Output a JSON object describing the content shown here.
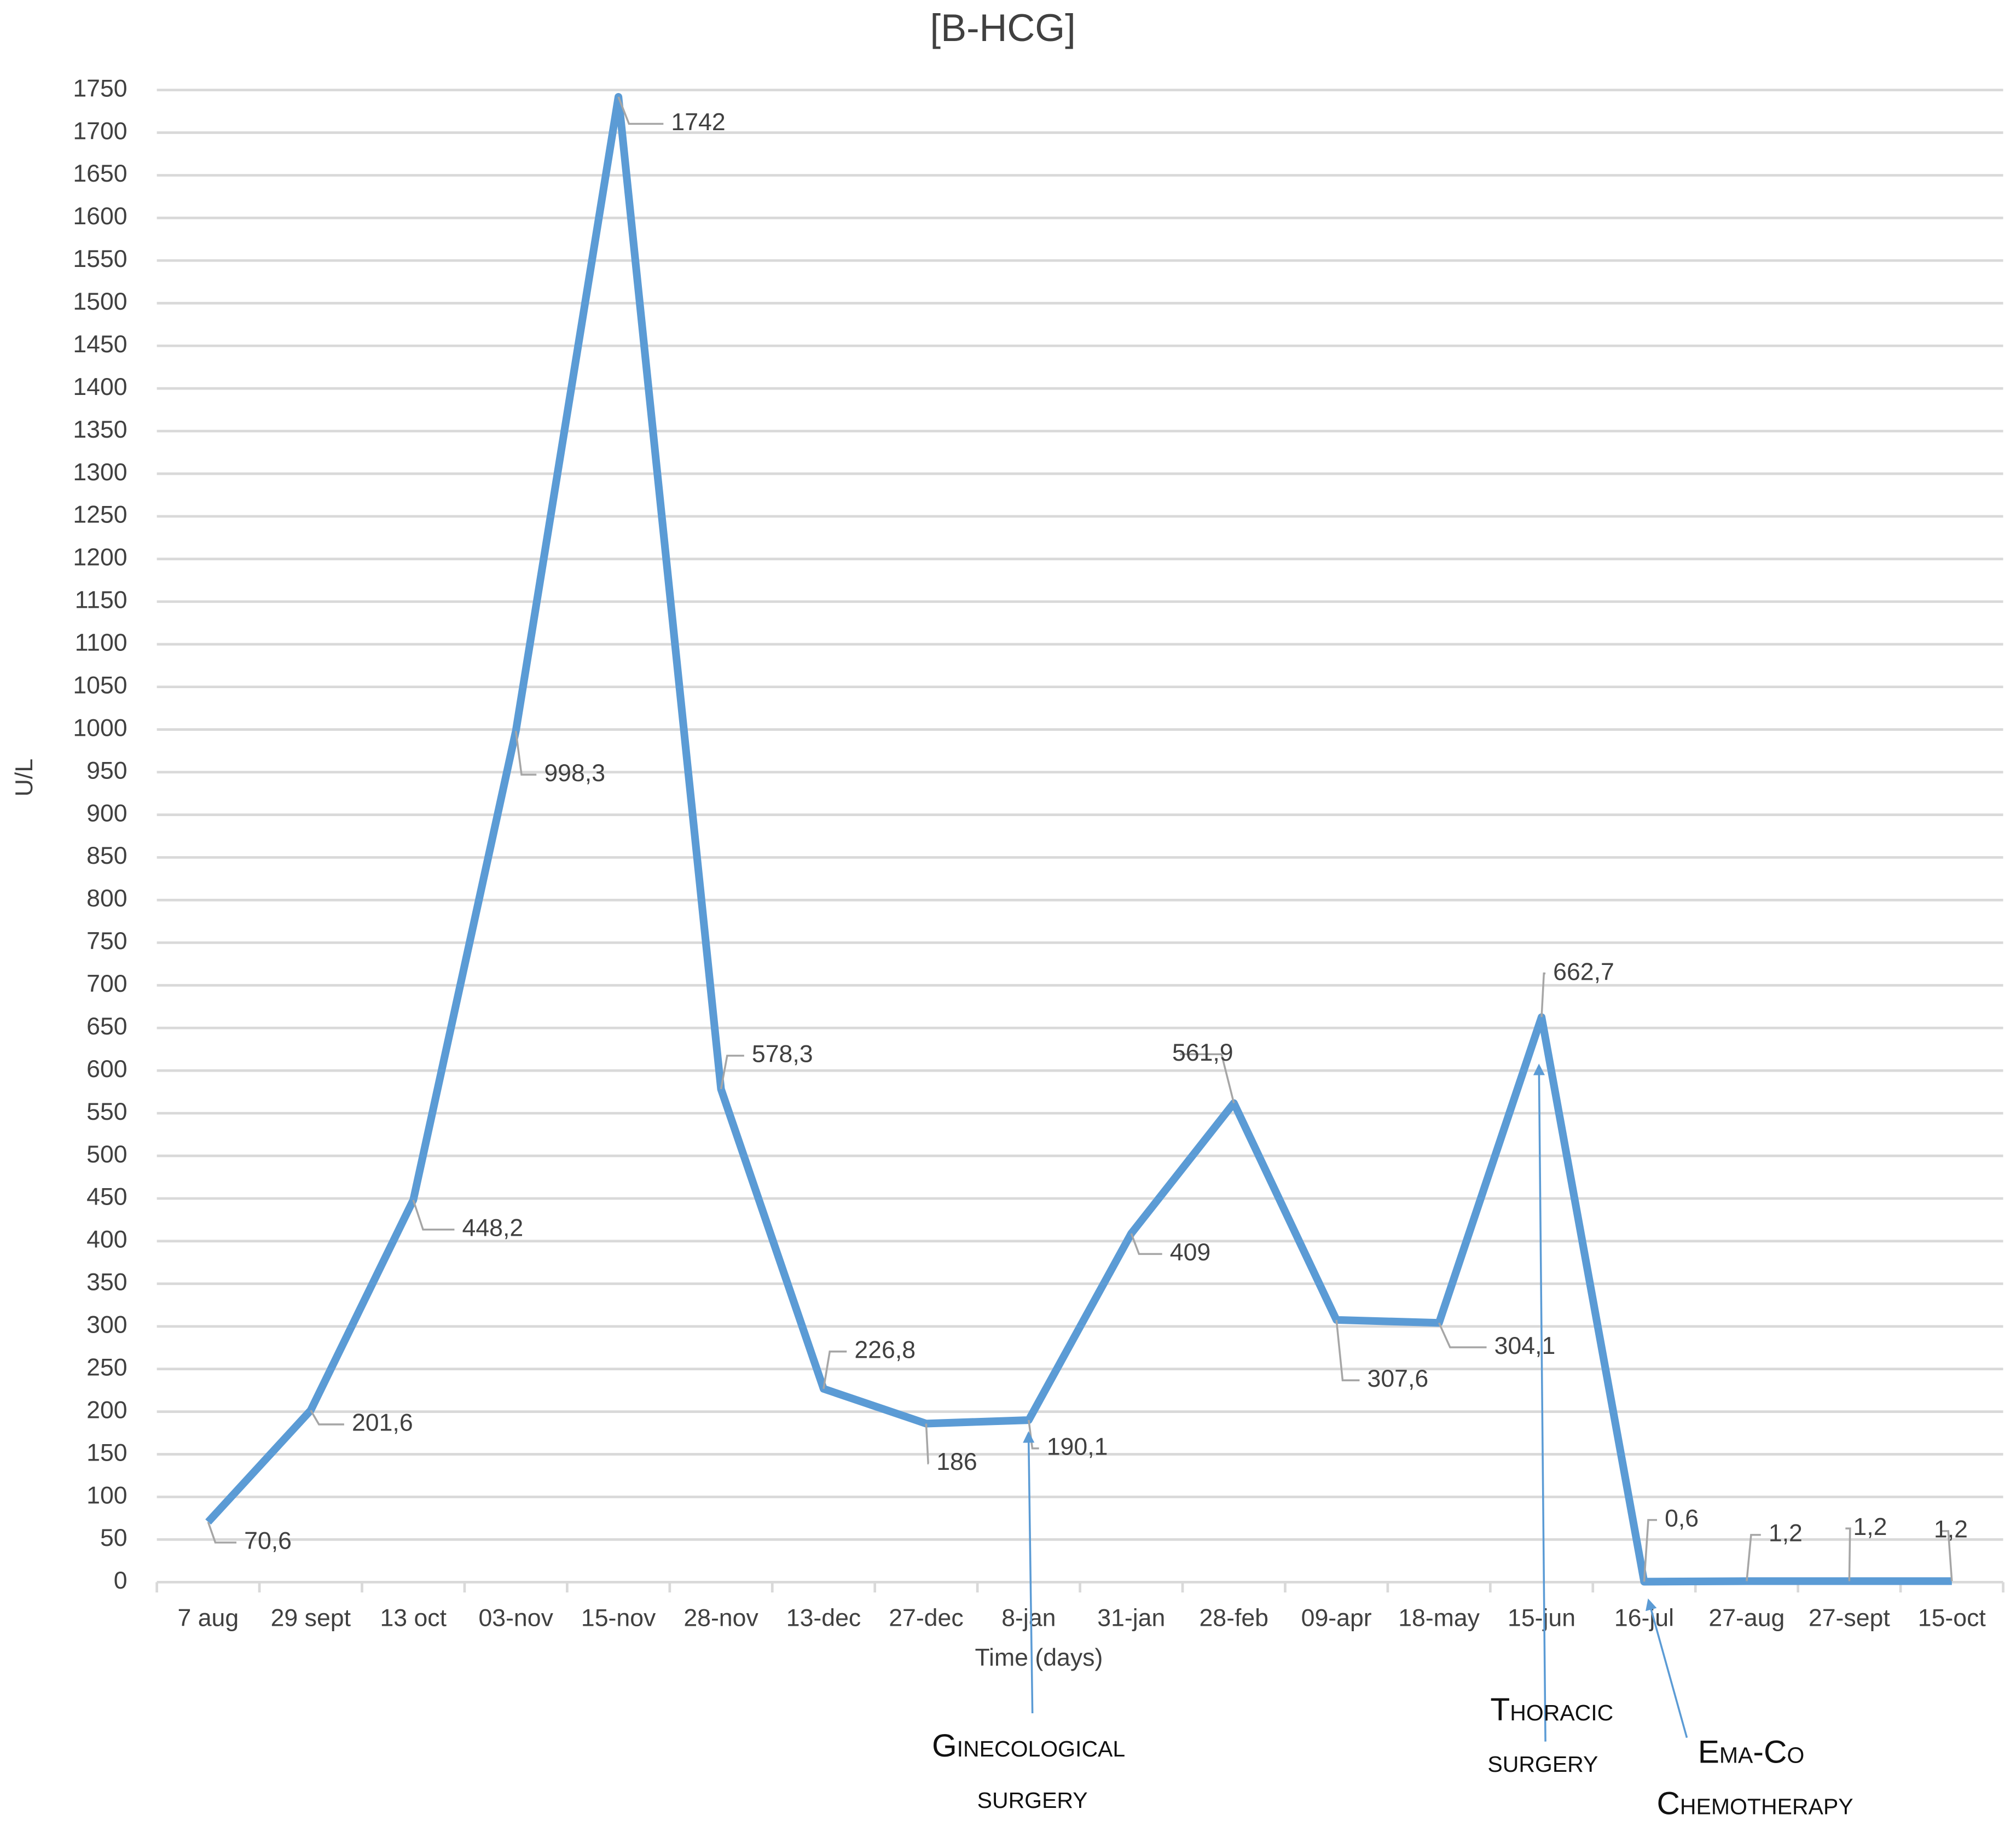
{
  "chart_data": {
    "type": "line",
    "title": "[B-HCG]",
    "y_label": "U/L",
    "x_label": "Time (days)",
    "categories": [
      "7 aug",
      "29 sept",
      "13 oct",
      "03-nov",
      "15-nov",
      "28-nov",
      "13-dec",
      "27-dec",
      "8-jan",
      "31-jan",
      "28-feb",
      "09-apr",
      "18-may",
      "15-jun",
      "16-jul",
      "27-aug",
      "27-sept",
      "15-oct"
    ],
    "values": [
      70.6,
      201.6,
      448.2,
      998.3,
      1742,
      578.3,
      226.8,
      186,
      190.1,
      409,
      561.9,
      307.6,
      304.1,
      662.7,
      0.6,
      1.2,
      1.2,
      1.2
    ],
    "value_labels": [
      "70,6",
      "201,6",
      "448,2",
      "998,3",
      "1742",
      "578,3",
      "226,8",
      "186",
      "190,1",
      "409",
      "561,9",
      "307,6",
      "304,1",
      "662,7",
      "0,6",
      "1,2",
      "1,2",
      "1,2"
    ],
    "color": "#5b9bd5",
    "ylim": [
      0,
      1750
    ],
    "yticks": [
      0,
      50,
      100,
      150,
      200,
      250,
      300,
      350,
      400,
      450,
      500,
      550,
      600,
      650,
      700,
      750,
      800,
      850,
      900,
      950,
      1000,
      1050,
      1100,
      1150,
      1200,
      1250,
      1300,
      1350,
      1400,
      1450,
      1500,
      1550,
      1600,
      1650,
      1700,
      1750
    ],
    "grid": true,
    "annotations": [
      {
        "lines": [
          "Ginecological",
          "surgery"
        ]
      },
      {
        "lines": [
          "Thoracic",
          "surgery"
        ]
      },
      {
        "lines": [
          "Ema-Co",
          "Chemotherapy"
        ]
      }
    ]
  }
}
